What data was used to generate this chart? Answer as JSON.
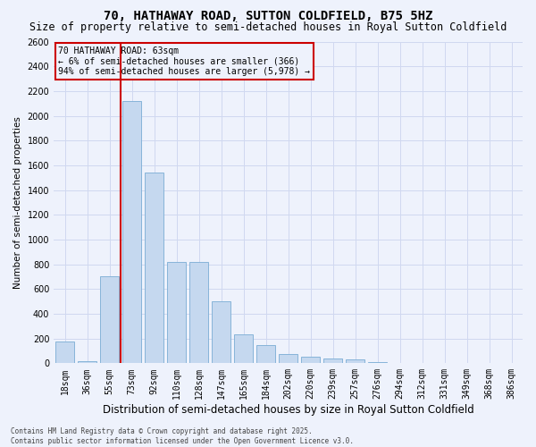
{
  "title": "70, HATHAWAY ROAD, SUTTON COLDFIELD, B75 5HZ",
  "subtitle": "Size of property relative to semi-detached houses in Royal Sutton Coldfield",
  "xlabel": "Distribution of semi-detached houses by size in Royal Sutton Coldfield",
  "ylabel": "Number of semi-detached properties",
  "categories": [
    "18sqm",
    "36sqm",
    "55sqm",
    "73sqm",
    "92sqm",
    "110sqm",
    "128sqm",
    "147sqm",
    "165sqm",
    "184sqm",
    "202sqm",
    "220sqm",
    "239sqm",
    "257sqm",
    "276sqm",
    "294sqm",
    "312sqm",
    "331sqm",
    "349sqm",
    "368sqm",
    "386sqm"
  ],
  "values": [
    175,
    20,
    700,
    2120,
    1545,
    820,
    820,
    500,
    235,
    150,
    78,
    50,
    42,
    28,
    8,
    4,
    2,
    2,
    2,
    2,
    2
  ],
  "bar_color": "#c5d8ef",
  "bar_edge_color": "#7aadd4",
  "vline_color": "#cc0000",
  "vline_x_index": 2.5,
  "annotation_text": "70 HATHAWAY ROAD: 63sqm\n← 6% of semi-detached houses are smaller (366)\n94% of semi-detached houses are larger (5,978) →",
  "annotation_box_edgecolor": "#cc0000",
  "ylim": [
    0,
    2600
  ],
  "yticks": [
    0,
    200,
    400,
    600,
    800,
    1000,
    1200,
    1400,
    1600,
    1800,
    2000,
    2200,
    2400,
    2600
  ],
  "bg_color": "#eef2fc",
  "grid_color": "#d0d8f0",
  "title_fontsize": 10,
  "subtitle_fontsize": 8.5,
  "ylabel_fontsize": 7.5,
  "xlabel_fontsize": 8.5,
  "tick_fontsize": 7,
  "footnote": "Contains HM Land Registry data © Crown copyright and database right 2025.\nContains public sector information licensed under the Open Government Licence v3.0."
}
